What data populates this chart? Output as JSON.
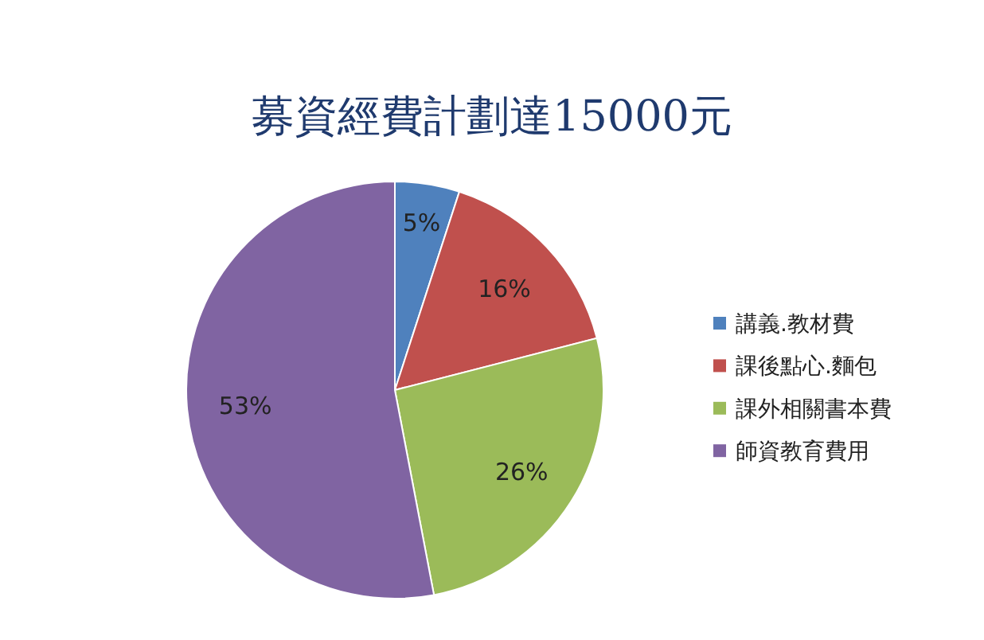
{
  "chart_data": {
    "type": "pie",
    "title": "募資經費計劃達15000元",
    "categories": [
      "講義.教材費",
      "課後點心.麵包",
      "課外相關書本費",
      "師資教育費用"
    ],
    "values": [
      5,
      16,
      26,
      53
    ],
    "value_labels": [
      "5%",
      "16%",
      "26%",
      "53%"
    ],
    "colors": [
      "#4f81bd",
      "#c0504d",
      "#9bbb59",
      "#8064a2"
    ],
    "legend": "right"
  }
}
